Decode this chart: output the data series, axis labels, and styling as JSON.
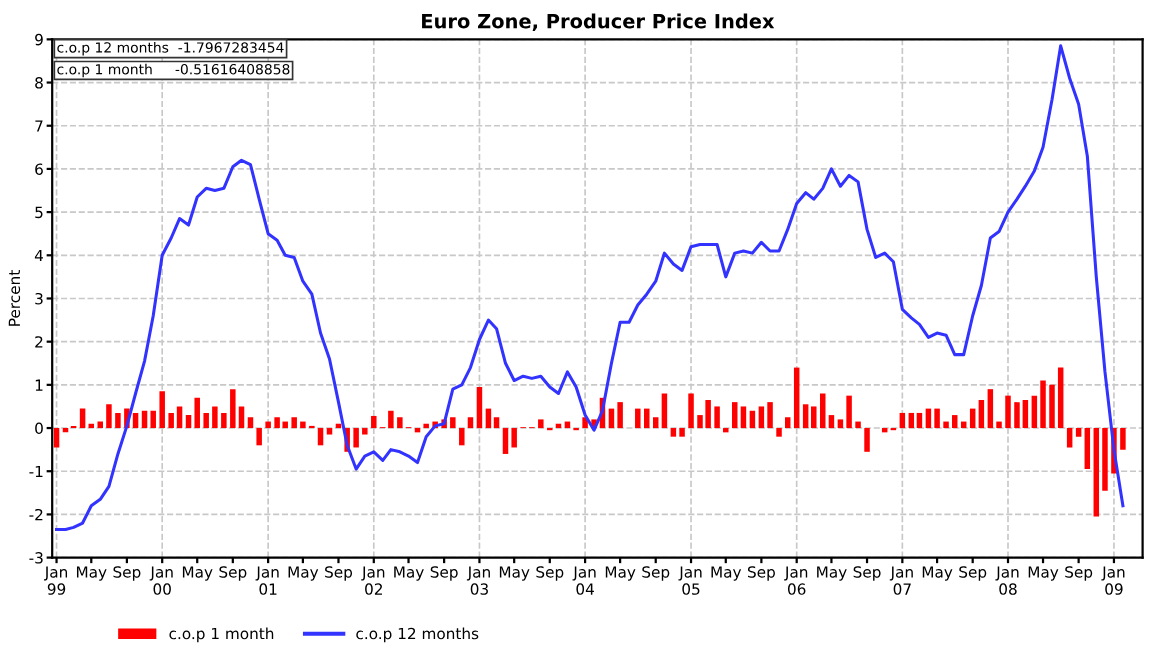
{
  "chart_data": {
    "type": "bar",
    "title": "Euro Zone, Producer Price Index",
    "ylabel": "Percent",
    "x": [
      "1999-01",
      "1999-02",
      "1999-03",
      "1999-04",
      "1999-05",
      "1999-06",
      "1999-07",
      "1999-08",
      "1999-09",
      "1999-10",
      "1999-11",
      "1999-12",
      "2000-01",
      "2000-02",
      "2000-03",
      "2000-04",
      "2000-05",
      "2000-06",
      "2000-07",
      "2000-08",
      "2000-09",
      "2000-10",
      "2000-11",
      "2000-12",
      "2001-01",
      "2001-02",
      "2001-03",
      "2001-04",
      "2001-05",
      "2001-06",
      "2001-07",
      "2001-08",
      "2001-09",
      "2001-10",
      "2001-11",
      "2001-12",
      "2002-01",
      "2002-02",
      "2002-03",
      "2002-04",
      "2002-05",
      "2002-06",
      "2002-07",
      "2002-08",
      "2002-09",
      "2002-10",
      "2002-11",
      "2002-12",
      "2003-01",
      "2003-02",
      "2003-03",
      "2003-04",
      "2003-05",
      "2003-06",
      "2003-07",
      "2003-08",
      "2003-09",
      "2003-10",
      "2003-11",
      "2003-12",
      "2004-01",
      "2004-02",
      "2004-03",
      "2004-04",
      "2004-05",
      "2004-06",
      "2004-07",
      "2004-08",
      "2004-09",
      "2004-10",
      "2004-11",
      "2004-12",
      "2005-01",
      "2005-02",
      "2005-03",
      "2005-04",
      "2005-05",
      "2005-06",
      "2005-07",
      "2005-08",
      "2005-09",
      "2005-10",
      "2005-11",
      "2005-12",
      "2006-01",
      "2006-02",
      "2006-03",
      "2006-04",
      "2006-05",
      "2006-06",
      "2006-07",
      "2006-08",
      "2006-09",
      "2006-10",
      "2006-11",
      "2006-12",
      "2007-01",
      "2007-02",
      "2007-03",
      "2007-04",
      "2007-05",
      "2007-06",
      "2007-07",
      "2007-08",
      "2007-09",
      "2007-10",
      "2007-11",
      "2007-12",
      "2008-01",
      "2008-02",
      "2008-03",
      "2008-04",
      "2008-05",
      "2008-06",
      "2008-07",
      "2008-08",
      "2008-09",
      "2008-10",
      "2008-11",
      "2008-12",
      "2009-01",
      "2009-02"
    ],
    "series": [
      {
        "name": "c.o.p 1 month",
        "color": "#ff0000",
        "values": [
          -0.45,
          -0.1,
          0.05,
          0.45,
          0.1,
          0.15,
          0.55,
          0.35,
          0.45,
          0.35,
          0.4,
          0.4,
          0.85,
          0.35,
          0.5,
          0.3,
          0.7,
          0.35,
          0.5,
          0.35,
          0.9,
          0.5,
          0.25,
          -0.4,
          0.15,
          0.25,
          0.15,
          0.25,
          0.15,
          0.05,
          -0.4,
          -0.15,
          0.1,
          -0.55,
          -0.45,
          -0.15,
          0.28,
          0.02,
          0.4,
          0.25,
          0.02,
          -0.1,
          0.1,
          0.15,
          0.2,
          0.25,
          -0.4,
          0.25,
          0.95,
          0.45,
          0.25,
          -0.6,
          -0.45,
          0.02,
          0.02,
          0.2,
          -0.05,
          0.1,
          0.15,
          -0.05,
          0.25,
          0.2,
          0.7,
          0.45,
          0.6,
          0.0,
          0.45,
          0.45,
          0.25,
          0.8,
          -0.2,
          -0.2,
          0.8,
          0.3,
          0.65,
          0.5,
          -0.1,
          0.6,
          0.5,
          0.4,
          0.5,
          0.6,
          -0.2,
          0.25,
          1.4,
          0.55,
          0.5,
          0.8,
          0.3,
          0.2,
          0.75,
          0.15,
          -0.55,
          0.0,
          -0.1,
          -0.05,
          0.35,
          0.35,
          0.35,
          0.45,
          0.45,
          0.15,
          0.3,
          0.15,
          0.45,
          0.65,
          0.9,
          0.15,
          0.75,
          0.6,
          0.65,
          0.75,
          1.1,
          1.0,
          1.4,
          -0.45,
          -0.2,
          -0.95,
          -2.05,
          -1.45,
          -1.05,
          -0.5
        ]
      },
      {
        "name": "c.o.p 12 months",
        "type": "line",
        "color": "#3333ff",
        "values": [
          -2.35,
          -2.35,
          -2.3,
          -2.2,
          -1.8,
          -1.65,
          -1.35,
          -0.6,
          0.05,
          0.8,
          1.55,
          2.6,
          4.0,
          4.4,
          4.85,
          4.7,
          5.35,
          5.55,
          5.5,
          5.55,
          6.05,
          6.2,
          6.1,
          5.3,
          4.5,
          4.35,
          4.0,
          3.95,
          3.4,
          3.1,
          2.2,
          1.6,
          0.6,
          -0.4,
          -0.95,
          -0.65,
          -0.55,
          -0.75,
          -0.5,
          -0.55,
          -0.65,
          -0.8,
          -0.2,
          0.05,
          0.1,
          0.9,
          1.0,
          1.4,
          2.05,
          2.5,
          2.3,
          1.5,
          1.1,
          1.2,
          1.15,
          1.2,
          0.95,
          0.8,
          1.3,
          0.95,
          0.3,
          -0.05,
          0.4,
          1.5,
          2.45,
          2.45,
          2.85,
          3.1,
          3.4,
          4.05,
          3.8,
          3.65,
          4.2,
          4.25,
          4.25,
          4.25,
          3.5,
          4.05,
          4.1,
          4.05,
          4.3,
          4.1,
          4.1,
          4.6,
          5.2,
          5.45,
          5.3,
          5.55,
          6.0,
          5.6,
          5.85,
          5.7,
          4.6,
          3.95,
          4.05,
          3.85,
          2.75,
          2.55,
          2.4,
          2.1,
          2.2,
          2.15,
          1.7,
          1.7,
          2.6,
          3.3,
          4.4,
          4.55,
          5.0,
          5.3,
          5.6,
          5.95,
          6.5,
          7.6,
          8.85,
          8.1,
          7.5,
          6.3,
          3.5,
          1.3,
          -0.5,
          -1.8
        ]
      }
    ],
    "xlim": [
      "1998-12-17",
      "2009-04-10"
    ],
    "xticks": [
      {
        "value": "1999-01",
        "label": "Jan\n99"
      },
      {
        "value": "1999-05",
        "label": "May"
      },
      {
        "value": "1999-09",
        "label": "Sep"
      },
      {
        "value": "2000-01",
        "label": "Jan\n00"
      },
      {
        "value": "2000-05",
        "label": "May"
      },
      {
        "value": "2000-09",
        "label": "Sep"
      },
      {
        "value": "2001-01",
        "label": "Jan\n01"
      },
      {
        "value": "2001-05",
        "label": "May"
      },
      {
        "value": "2001-09",
        "label": "Sep"
      },
      {
        "value": "2002-01",
        "label": "Jan\n02"
      },
      {
        "value": "2002-05",
        "label": "May"
      },
      {
        "value": "2002-09",
        "label": "Sep"
      },
      {
        "value": "2003-01",
        "label": "Jan\n03"
      },
      {
        "value": "2003-05",
        "label": "May"
      },
      {
        "value": "2003-09",
        "label": "Sep"
      },
      {
        "value": "2004-01",
        "label": "Jan\n04"
      },
      {
        "value": "2004-05",
        "label": "May"
      },
      {
        "value": "2004-09",
        "label": "Sep"
      },
      {
        "value": "2005-01",
        "label": "Jan\n05"
      },
      {
        "value": "2005-05",
        "label": "May"
      },
      {
        "value": "2005-09",
        "label": "Sep"
      },
      {
        "value": "2006-01",
        "label": "Jan\n06"
      },
      {
        "value": "2006-05",
        "label": "May"
      },
      {
        "value": "2006-09",
        "label": "Sep"
      },
      {
        "value": "2007-01",
        "label": "Jan\n07"
      },
      {
        "value": "2007-05",
        "label": "May"
      },
      {
        "value": "2007-09",
        "label": "Sep"
      },
      {
        "value": "2008-01",
        "label": "Jan\n08"
      },
      {
        "value": "2008-05",
        "label": "May"
      },
      {
        "value": "2008-09",
        "label": "Sep"
      },
      {
        "value": "2009-01",
        "label": "Jan\n09"
      }
    ],
    "ylim": [
      -3,
      9
    ],
    "yticks": [
      -3,
      -2,
      -1,
      0,
      1,
      2,
      3,
      4,
      5,
      6,
      7,
      8,
      9
    ],
    "grid": true,
    "legend": "bottom",
    "annotations": [
      "c.o.p 12 months  -1.7967283454",
      "c.o.p 1 month     -0.51616408858"
    ]
  }
}
